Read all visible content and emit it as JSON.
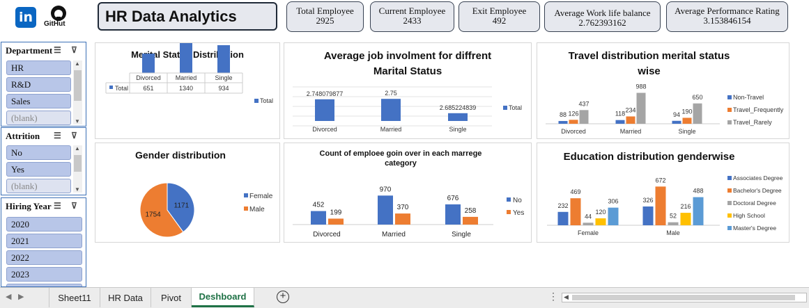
{
  "header": {
    "github_label": "GitHut",
    "title": "HR Data Analytics"
  },
  "kpis": [
    {
      "label": "Total Employee",
      "value": "2925"
    },
    {
      "label": "Current Employee",
      "value": "2433"
    },
    {
      "label": "Exit Employee",
      "value": "492"
    },
    {
      "label": "Average Work life balance",
      "value": "2.762393162"
    },
    {
      "label": "Average Performance Rating",
      "value": "3.153846154"
    }
  ],
  "slicers": {
    "department": {
      "title": "Department",
      "items": [
        "HR",
        "R&D",
        "Sales",
        "(blank)"
      ]
    },
    "attrition": {
      "title": "Attrition",
      "items": [
        "No",
        "Yes",
        "(blank)"
      ]
    },
    "hiring_year": {
      "title": "Hiring Year",
      "items": [
        "2020",
        "2021",
        "2022",
        "2023"
      ]
    }
  },
  "tabs": [
    "Sheet11",
    "HR Data",
    "Pivot",
    "Deshboard"
  ],
  "colors": {
    "blue": "#4472c4",
    "orange": "#ed7d31",
    "gray": "#a5a5a5",
    "yellow": "#ffc000",
    "lightblue": "#5b9bd5"
  },
  "charts": {
    "marital": {
      "title": "Merital Status Distribution",
      "table_total_label": "Total",
      "legend": "Total"
    },
    "involvement": {
      "title_line1": "Average job involment for diffrent",
      "title_line2": "Marital Status",
      "legend": "Total",
      "value_labels": [
        "2.748079877",
        "2.75",
        "2.685224839"
      ]
    },
    "travel": {
      "title_line1": "Travel distribution merital status",
      "title_line2": "wise"
    },
    "gender": {
      "title": "Gender distribution"
    },
    "attrition": {
      "title_line1": "Count of emploee goin over in each marrege",
      "title_line2": "category"
    },
    "education": {
      "title": "Education distribution genderwise"
    }
  },
  "chart_data": [
    {
      "type": "bar",
      "title": "Merital Status Distribution",
      "categories": [
        "Divorced",
        "Married",
        "Single"
      ],
      "series": [
        {
          "name": "Total",
          "values": [
            651,
            1340,
            934
          ]
        }
      ]
    },
    {
      "type": "bar",
      "title": "Average job involment for diffrent Marital Status",
      "categories": [
        "Divorced",
        "Married",
        "Single"
      ],
      "series": [
        {
          "name": "Total",
          "values": [
            2.748079877,
            2.75,
            2.685224839
          ]
        }
      ]
    },
    {
      "type": "bar",
      "title": "Travel distribution merital status wise",
      "categories": [
        "Divorced",
        "Married",
        "Single"
      ],
      "series": [
        {
          "name": "Non-Travel",
          "values": [
            88,
            118,
            94
          ]
        },
        {
          "name": "Travel_Frequently",
          "values": [
            126,
            234,
            190
          ]
        },
        {
          "name": "Travel_Rarely",
          "values": [
            437,
            988,
            650
          ]
        }
      ]
    },
    {
      "type": "pie",
      "title": "Gender distribution",
      "categories": [
        "Female",
        "Male"
      ],
      "values": [
        1171,
        1754
      ]
    },
    {
      "type": "bar",
      "title": "Count of emploee goin over in each marrege category",
      "categories": [
        "Divorced",
        "Married",
        "Single"
      ],
      "series": [
        {
          "name": "No",
          "values": [
            452,
            970,
            676
          ]
        },
        {
          "name": "Yes",
          "values": [
            199,
            370,
            258
          ]
        }
      ]
    },
    {
      "type": "bar",
      "title": "Education distribution genderwise",
      "categories": [
        "Female",
        "Male"
      ],
      "series": [
        {
          "name": "Associates Degree",
          "values": [
            232,
            326
          ]
        },
        {
          "name": "Bachelor's Degree",
          "values": [
            469,
            672
          ]
        },
        {
          "name": "Doctoral Degree",
          "values": [
            44,
            52
          ]
        },
        {
          "name": "High School",
          "values": [
            120,
            216
          ]
        },
        {
          "name": "Master's Degree",
          "values": [
            306,
            488
          ]
        }
      ]
    }
  ]
}
